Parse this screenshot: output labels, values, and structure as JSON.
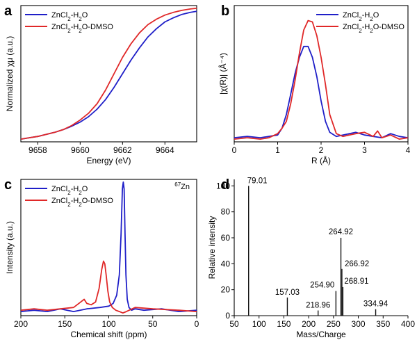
{
  "colors": {
    "blue": "#1f1fc8",
    "red": "#e02828",
    "black": "#111111"
  },
  "chart_data": [
    {
      "panel": "a",
      "type": "line",
      "xlabel": "Energy (eV)",
      "ylabel": "Normalized χμ (a.u.)",
      "xlim": [
        9657.2,
        9665.5
      ],
      "ylim": [
        0,
        1.0
      ],
      "xticks": [
        9658,
        9660,
        9662,
        9664
      ],
      "xtick_labels": [
        "9658",
        "9660",
        "9662",
        "9664"
      ],
      "legend": {
        "position": "top-left",
        "entries": [
          {
            "sub": [
              "ZnCl",
              "2",
              "-H",
              "2",
              "O"
            ]
          },
          {
            "sub": [
              "ZnCl",
              "2",
              "-H",
              "2",
              "O-DMSO"
            ]
          }
        ]
      },
      "series": [
        {
          "name": "ZnCl2-H2O",
          "color": "blue",
          "x": [
            9657.2,
            9657.6,
            9658.0,
            9658.4,
            9658.8,
            9659.2,
            9659.6,
            9660.0,
            9660.4,
            9660.8,
            9661.2,
            9661.6,
            9662.0,
            9662.4,
            9662.8,
            9663.2,
            9663.6,
            9664.0,
            9664.4,
            9664.8,
            9665.2,
            9665.5
          ],
          "y": [
            0.02,
            0.03,
            0.04,
            0.055,
            0.07,
            0.09,
            0.115,
            0.145,
            0.185,
            0.24,
            0.31,
            0.4,
            0.5,
            0.6,
            0.69,
            0.77,
            0.83,
            0.88,
            0.91,
            0.935,
            0.95,
            0.958
          ]
        },
        {
          "name": "ZnCl2-H2O-DMSO",
          "color": "red",
          "x": [
            9657.2,
            9657.6,
            9658.0,
            9658.4,
            9658.8,
            9659.2,
            9659.6,
            9660.0,
            9660.4,
            9660.8,
            9661.2,
            9661.6,
            9662.0,
            9662.4,
            9662.8,
            9663.2,
            9663.6,
            9664.0,
            9664.4,
            9664.8,
            9665.2,
            9665.5
          ],
          "y": [
            0.02,
            0.03,
            0.04,
            0.055,
            0.07,
            0.09,
            0.12,
            0.16,
            0.21,
            0.28,
            0.38,
            0.5,
            0.62,
            0.72,
            0.8,
            0.86,
            0.9,
            0.93,
            0.95,
            0.965,
            0.975,
            0.98
          ]
        }
      ]
    },
    {
      "panel": "b",
      "type": "line",
      "xlabel": "R (Å)",
      "ylabel": "|χ(R)| (Å⁻⁴)",
      "xlim": [
        0,
        4
      ],
      "ylim": [
        0,
        1.0
      ],
      "xticks": [
        0,
        1,
        2,
        3,
        4
      ],
      "xtick_labels": [
        "0",
        "1",
        "2",
        "3",
        "4"
      ],
      "legend": {
        "position": "top-right",
        "entries": [
          {
            "sub": [
              "ZnCl",
              "2",
              "-H",
              "2",
              "O"
            ]
          },
          {
            "sub": [
              "ZnCl",
              "2",
              "-H",
              "2",
              "O-DMSO"
            ]
          }
        ]
      },
      "series": [
        {
          "name": "ZnCl2-H2O",
          "color": "blue",
          "x": [
            0,
            0.3,
            0.6,
            0.8,
            1.0,
            1.1,
            1.2,
            1.3,
            1.4,
            1.5,
            1.6,
            1.7,
            1.8,
            1.9,
            2.0,
            2.1,
            2.2,
            2.35,
            2.5,
            2.8,
            3.0,
            3.2,
            3.4,
            3.6,
            3.8,
            4.0
          ],
          "y": [
            0.03,
            0.04,
            0.03,
            0.04,
            0.05,
            0.1,
            0.2,
            0.35,
            0.5,
            0.62,
            0.7,
            0.7,
            0.62,
            0.48,
            0.3,
            0.15,
            0.07,
            0.04,
            0.05,
            0.07,
            0.05,
            0.04,
            0.03,
            0.06,
            0.04,
            0.03
          ]
        },
        {
          "name": "ZnCl2-H2O-DMSO",
          "color": "red",
          "x": [
            0,
            0.3,
            0.6,
            0.8,
            1.0,
            1.1,
            1.2,
            1.3,
            1.4,
            1.5,
            1.6,
            1.7,
            1.8,
            1.9,
            2.0,
            2.1,
            2.2,
            2.35,
            2.5,
            2.8,
            3.0,
            3.2,
            3.3,
            3.4,
            3.6,
            3.8,
            4.0
          ],
          "y": [
            0.02,
            0.03,
            0.02,
            0.03,
            0.06,
            0.1,
            0.15,
            0.28,
            0.45,
            0.65,
            0.82,
            0.89,
            0.88,
            0.78,
            0.62,
            0.42,
            0.2,
            0.06,
            0.04,
            0.06,
            0.07,
            0.04,
            0.08,
            0.03,
            0.05,
            0.02,
            0.03
          ]
        }
      ]
    },
    {
      "panel": "c",
      "type": "line",
      "xlabel": "Chemical shift (ppm)",
      "ylabel": "Intensity (a.u.)",
      "xlim": [
        200,
        0
      ],
      "ylim": [
        0,
        1.0
      ],
      "xticks": [
        200,
        150,
        100,
        50,
        0
      ],
      "xtick_labels": [
        "200",
        "150",
        "100",
        "50",
        "0"
      ],
      "annotation": {
        "sup": "67",
        "base": "Zn"
      },
      "legend": {
        "position": "top-left",
        "entries": [
          {
            "sub": [
              "ZnCl",
              "2",
              "-H",
              "2",
              "O"
            ]
          },
          {
            "sub": [
              "ZnCl",
              "2",
              "-H",
              "2",
              "O-DMSO"
            ]
          }
        ]
      },
      "series": [
        {
          "name": "ZnCl2-H2O",
          "color": "blue",
          "x": [
            200,
            185,
            170,
            155,
            140,
            125,
            110,
            100,
            95,
            91,
            88,
            86,
            84.5,
            83.5,
            82.5,
            81.5,
            80.5,
            79,
            77,
            74,
            70,
            60,
            40,
            20,
            0
          ],
          "y": [
            0.03,
            0.04,
            0.03,
            0.05,
            0.03,
            0.05,
            0.06,
            0.07,
            0.09,
            0.15,
            0.3,
            0.6,
            0.93,
            0.98,
            0.93,
            0.6,
            0.3,
            0.12,
            0.06,
            0.04,
            0.05,
            0.04,
            0.05,
            0.03,
            0.04
          ]
        },
        {
          "name": "ZnCl2-H2O-DMSO",
          "color": "red",
          "x": [
            200,
            185,
            170,
            155,
            140,
            132,
            128,
            125,
            120,
            115,
            111,
            108,
            106,
            104.5,
            103,
            101,
            99,
            96,
            92,
            88,
            84,
            80,
            70,
            50,
            20,
            0
          ],
          "y": [
            0.04,
            0.05,
            0.04,
            0.05,
            0.06,
            0.1,
            0.12,
            0.09,
            0.08,
            0.1,
            0.2,
            0.34,
            0.4,
            0.38,
            0.3,
            0.18,
            0.1,
            0.06,
            0.04,
            0.03,
            0.02,
            0.03,
            0.06,
            0.05,
            0.04,
            0.03
          ]
        }
      ]
    },
    {
      "panel": "d",
      "type": "bar",
      "xlabel": "Mass/Charge",
      "ylabel": "Relative intensity",
      "xlim": [
        50,
        400
      ],
      "ylim": [
        0,
        105
      ],
      "xticks": [
        50,
        100,
        150,
        200,
        250,
        300,
        350,
        400
      ],
      "xtick_labels": [
        "50",
        "100",
        "150",
        "200",
        "250",
        "300",
        "350",
        "400"
      ],
      "yticks": [
        0,
        20,
        40,
        60,
        80,
        100
      ],
      "ytick_labels": [
        "0",
        "20",
        "40",
        "60",
        "80",
        "100"
      ],
      "peaks": [
        {
          "x": 79.01,
          "y": 100,
          "label": "79.01"
        },
        {
          "x": 157.03,
          "y": 14,
          "label": "157.03"
        },
        {
          "x": 218.96,
          "y": 4,
          "label": "218.96"
        },
        {
          "x": 254.9,
          "y": 19,
          "label": "254.90"
        },
        {
          "x": 264.92,
          "y": 60,
          "label": "264.92"
        },
        {
          "x": 266.92,
          "y": 36,
          "label": "266.92"
        },
        {
          "x": 268.91,
          "y": 22,
          "label": "268.91"
        },
        {
          "x": 334.94,
          "y": 5,
          "label": "334.94"
        }
      ]
    }
  ]
}
